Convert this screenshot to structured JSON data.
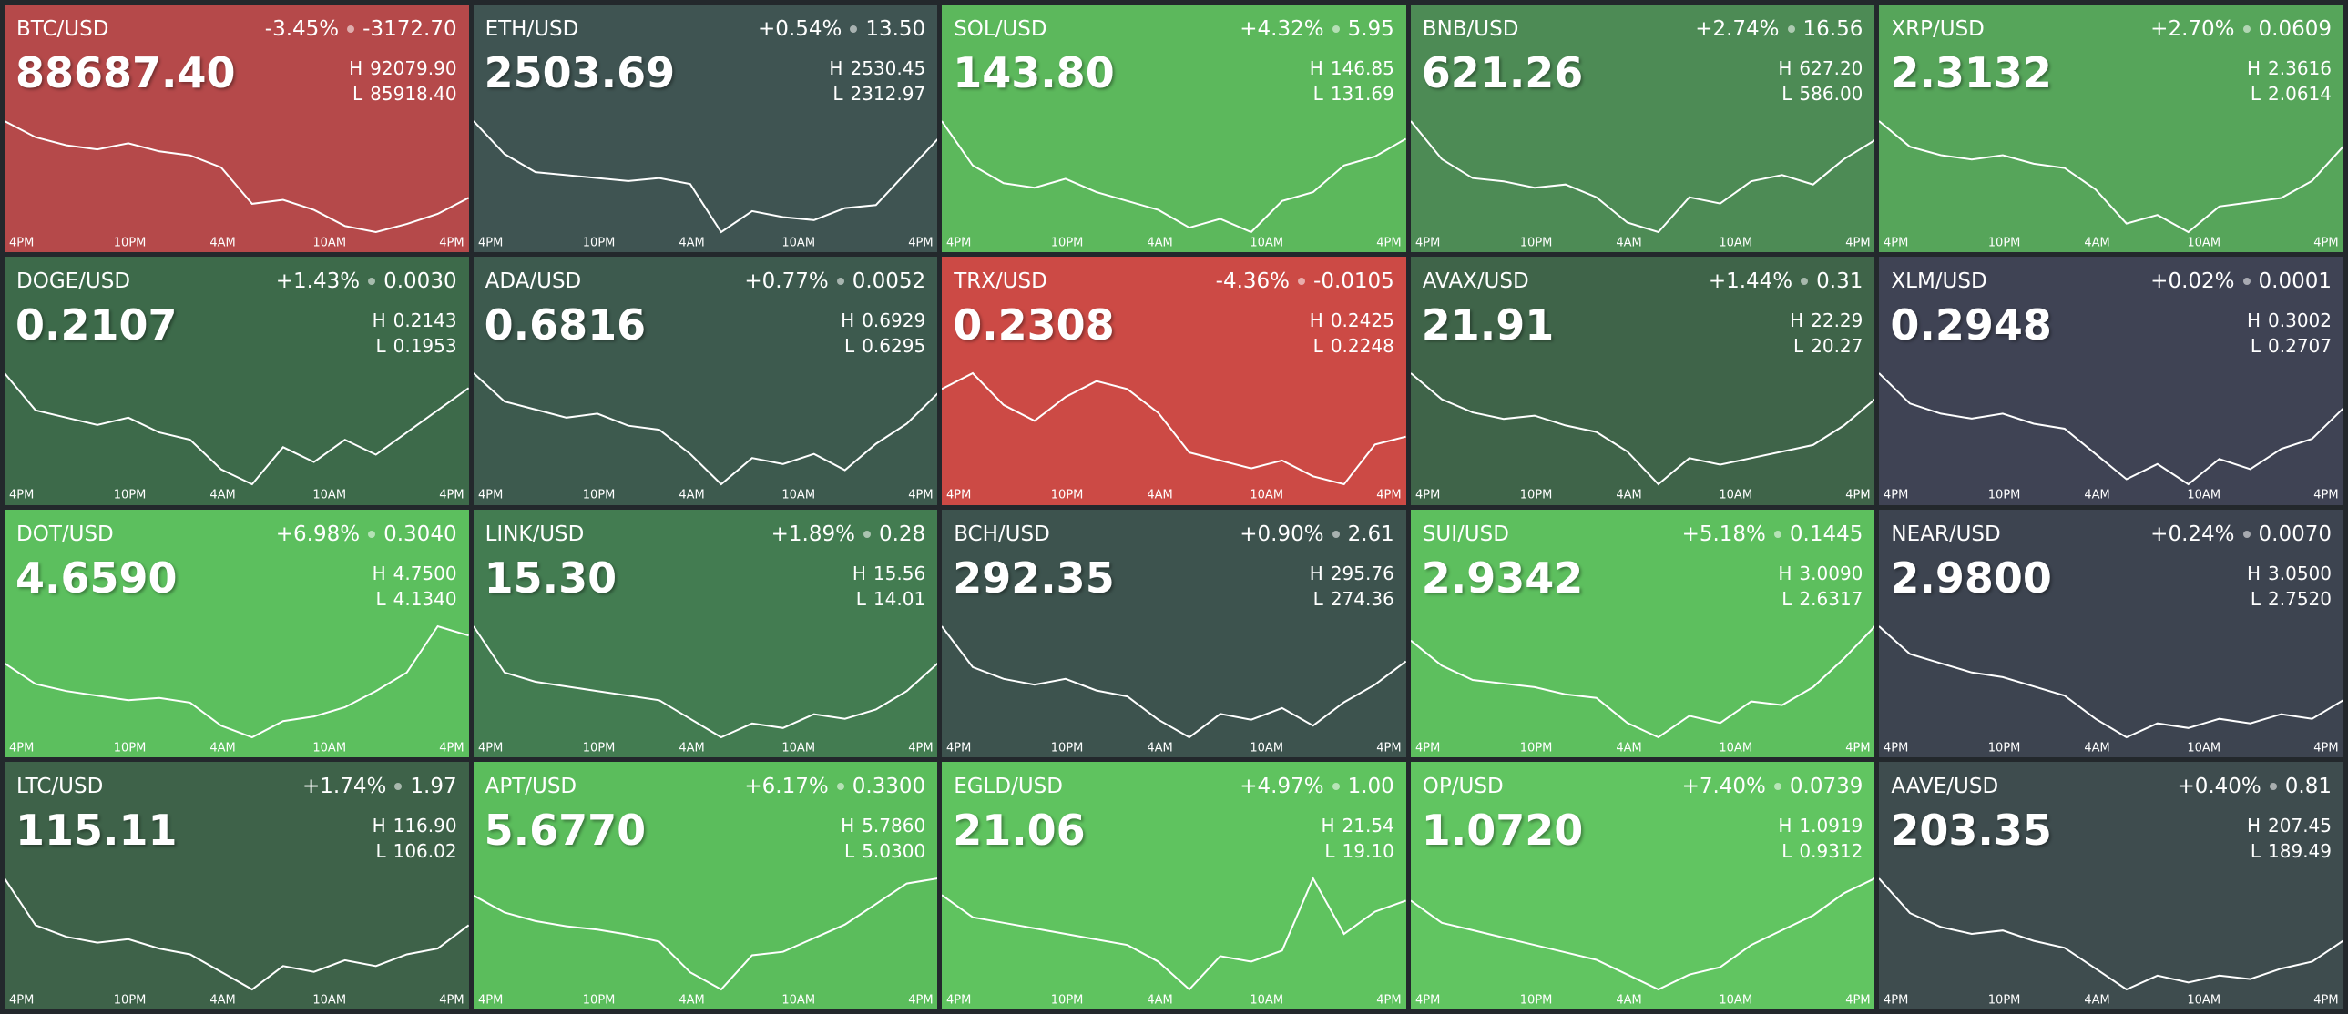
{
  "labels": {
    "high": "H",
    "low": "L"
  },
  "time_axis": [
    "4PM",
    "10PM",
    "4AM",
    "10AM",
    "4PM"
  ],
  "tiles": [
    {
      "pair": "BTC/USD",
      "change_pct": "-3.45%",
      "change": "-3172.70",
      "price": "88687.40",
      "high": "92079.90",
      "low": "85918.40",
      "color": "#b5494a",
      "sparkline": [
        91800,
        91000,
        90600,
        90400,
        90700,
        90300,
        90100,
        89500,
        87700,
        87900,
        87400,
        86600,
        86300,
        86700,
        87200,
        88000
      ]
    },
    {
      "pair": "ETH/USD",
      "change_pct": "+0.54%",
      "change": "13.50",
      "price": "2503.69",
      "high": "2530.45",
      "low": "2312.97",
      "color": "#3f5452",
      "sparkline": [
        2525,
        2470,
        2440,
        2435,
        2430,
        2425,
        2430,
        2420,
        2340,
        2375,
        2365,
        2360,
        2380,
        2385,
        2440,
        2495
      ]
    },
    {
      "pair": "SOL/USD",
      "change_pct": "+4.32%",
      "change": "5.95",
      "price": "143.80",
      "high": "146.85",
      "low": "131.69",
      "color": "#5cb85c",
      "sparkline": [
        145,
        140,
        138,
        137.5,
        138.5,
        137,
        136,
        135,
        133,
        134,
        132.5,
        136,
        137,
        140,
        141,
        143
      ]
    },
    {
      "pair": "BNB/USD",
      "change_pct": "+2.74%",
      "change": "16.56",
      "price": "621.26",
      "high": "627.20",
      "low": "586.00",
      "color": "#4d8b55",
      "sparkline": [
        624,
        612,
        606,
        605,
        603,
        604,
        600,
        592,
        589,
        600,
        598,
        605,
        607,
        604,
        612,
        618
      ]
    },
    {
      "pair": "XRP/USD",
      "change_pct": "+2.70%",
      "change": "0.0609",
      "price": "2.3132",
      "high": "2.3616",
      "low": "2.0614",
      "color": "#56a55a",
      "sparkline": [
        2.34,
        2.28,
        2.26,
        2.25,
        2.26,
        2.24,
        2.23,
        2.18,
        2.1,
        2.12,
        2.08,
        2.14,
        2.15,
        2.16,
        2.2,
        2.28
      ]
    },
    {
      "pair": "DOGE/USD",
      "change_pct": "+1.43%",
      "change": "0.0030",
      "price": "0.2107",
      "high": "0.2143",
      "low": "0.1953",
      "color": "#3d6a4a",
      "sparkline": [
        0.212,
        0.207,
        0.206,
        0.205,
        0.206,
        0.204,
        0.203,
        0.199,
        0.197,
        0.202,
        0.2,
        0.203,
        0.201,
        0.204,
        0.207,
        0.21
      ]
    },
    {
      "pair": "ADA/USD",
      "change_pct": "+0.77%",
      "change": "0.0052",
      "price": "0.6816",
      "high": "0.6929",
      "low": "0.6295",
      "color": "#3d5a4e",
      "sparkline": [
        0.69,
        0.676,
        0.672,
        0.668,
        0.67,
        0.664,
        0.662,
        0.65,
        0.635,
        0.648,
        0.645,
        0.65,
        0.642,
        0.655,
        0.665,
        0.68
      ]
    },
    {
      "pair": "TRX/USD",
      "change_pct": "-4.36%",
      "change": "-0.0105",
      "price": "0.2308",
      "high": "0.2425",
      "low": "0.2248",
      "color": "#cc4a45",
      "sparkline": [
        0.238,
        0.24,
        0.236,
        0.234,
        0.237,
        0.239,
        0.238,
        0.235,
        0.23,
        0.229,
        0.228,
        0.229,
        0.227,
        0.226,
        0.231,
        0.232
      ]
    },
    {
      "pair": "AVAX/USD",
      "change_pct": "+1.44%",
      "change": "0.31",
      "price": "21.91",
      "high": "22.29",
      "low": "20.27",
      "color": "#3f6449",
      "sparkline": [
        22.2,
        21.8,
        21.6,
        21.5,
        21.55,
        21.4,
        21.3,
        21.0,
        20.5,
        20.9,
        20.8,
        20.9,
        21.0,
        21.1,
        21.4,
        21.8
      ]
    },
    {
      "pair": "XLM/USD",
      "change_pct": "+0.02%",
      "change": "0.0001",
      "price": "0.2948",
      "high": "0.3002",
      "low": "0.2707",
      "color": "#3f4354",
      "sparkline": [
        0.298,
        0.292,
        0.29,
        0.289,
        0.29,
        0.288,
        0.287,
        0.282,
        0.277,
        0.28,
        0.276,
        0.281,
        0.279,
        0.283,
        0.285,
        0.291
      ]
    },
    {
      "pair": "DOT/USD",
      "change_pct": "+6.98%",
      "change": "0.3040",
      "price": "4.6590",
      "high": "4.7500",
      "low": "4.1340",
      "color": "#5cbf5e",
      "sparkline": [
        4.52,
        4.43,
        4.4,
        4.38,
        4.36,
        4.37,
        4.35,
        4.25,
        4.2,
        4.27,
        4.29,
        4.33,
        4.4,
        4.48,
        4.68,
        4.64
      ]
    },
    {
      "pair": "LINK/USD",
      "change_pct": "+1.89%",
      "change": "0.28",
      "price": "15.30",
      "high": "15.56",
      "low": "14.01",
      "color": "#437c51",
      "sparkline": [
        15.5,
        15.0,
        14.9,
        14.85,
        14.8,
        14.75,
        14.7,
        14.5,
        14.3,
        14.45,
        14.4,
        14.55,
        14.5,
        14.6,
        14.8,
        15.1
      ]
    },
    {
      "pair": "BCH/USD",
      "change_pct": "+0.90%",
      "change": "2.61",
      "price": "292.35",
      "high": "295.76",
      "low": "274.36",
      "color": "#3d534e",
      "sparkline": [
        295,
        288,
        286,
        285,
        286,
        284,
        283,
        279,
        276,
        280,
        279,
        281,
        278,
        282,
        285,
        289
      ]
    },
    {
      "pair": "SUI/USD",
      "change_pct": "+5.18%",
      "change": "0.1445",
      "price": "2.9342",
      "high": "3.0090",
      "low": "2.6317",
      "color": "#5dbf5e",
      "sparkline": [
        2.95,
        2.88,
        2.84,
        2.83,
        2.82,
        2.8,
        2.79,
        2.72,
        2.68,
        2.74,
        2.72,
        2.78,
        2.77,
        2.82,
        2.9,
        2.99
      ]
    },
    {
      "pair": "NEAR/USD",
      "change_pct": "+0.24%",
      "change": "0.0070",
      "price": "2.9800",
      "high": "3.0500",
      "low": "2.7520",
      "color": "#3d4450",
      "sparkline": [
        3.04,
        2.98,
        2.96,
        2.94,
        2.93,
        2.91,
        2.89,
        2.84,
        2.8,
        2.83,
        2.82,
        2.84,
        2.83,
        2.85,
        2.84,
        2.88
      ]
    },
    {
      "pair": "LTC/USD",
      "change_pct": "+1.74%",
      "change": "1.97",
      "price": "115.11",
      "high": "116.90",
      "low": "106.02",
      "color": "#3e6249",
      "sparkline": [
        116,
        112,
        111,
        110.5,
        110.8,
        110,
        109.5,
        108,
        106.5,
        108.5,
        108,
        109,
        108.5,
        109.5,
        110,
        112
      ]
    },
    {
      "pair": "APT/USD",
      "change_pct": "+6.17%",
      "change": "0.3300",
      "price": "5.6770",
      "high": "5.7860",
      "low": "5.0300",
      "color": "#5bbd5c",
      "sparkline": [
        5.65,
        5.55,
        5.5,
        5.47,
        5.45,
        5.42,
        5.38,
        5.2,
        5.1,
        5.3,
        5.32,
        5.4,
        5.48,
        5.6,
        5.72,
        5.75
      ]
    },
    {
      "pair": "EGLD/USD",
      "change_pct": "+4.97%",
      "change": "1.00",
      "price": "21.06",
      "high": "21.54",
      "low": "19.10",
      "color": "#5fc35f",
      "sparkline": [
        21.0,
        20.6,
        20.5,
        20.4,
        20.3,
        20.2,
        20.1,
        19.8,
        19.3,
        19.9,
        19.8,
        20.0,
        21.3,
        20.3,
        20.7,
        20.9
      ]
    },
    {
      "pair": "OP/USD",
      "change_pct": "+7.40%",
      "change": "0.0739",
      "price": "1.0720",
      "high": "1.0919",
      "low": "0.9312",
      "color": "#61c561",
      "sparkline": [
        1.06,
        1.03,
        1.02,
        1.01,
        1.0,
        0.99,
        0.98,
        0.96,
        0.94,
        0.96,
        0.97,
        1.0,
        1.02,
        1.04,
        1.07,
        1.09
      ]
    },
    {
      "pair": "AAVE/USD",
      "change_pct": "+0.40%",
      "change": "0.81",
      "price": "203.35",
      "high": "207.45",
      "low": "189.49",
      "color": "#3e4c4e",
      "sparkline": [
        206,
        201,
        199,
        198,
        198.5,
        197,
        196,
        193,
        190,
        192,
        191,
        192,
        191.5,
        193,
        194,
        197
      ]
    }
  ]
}
